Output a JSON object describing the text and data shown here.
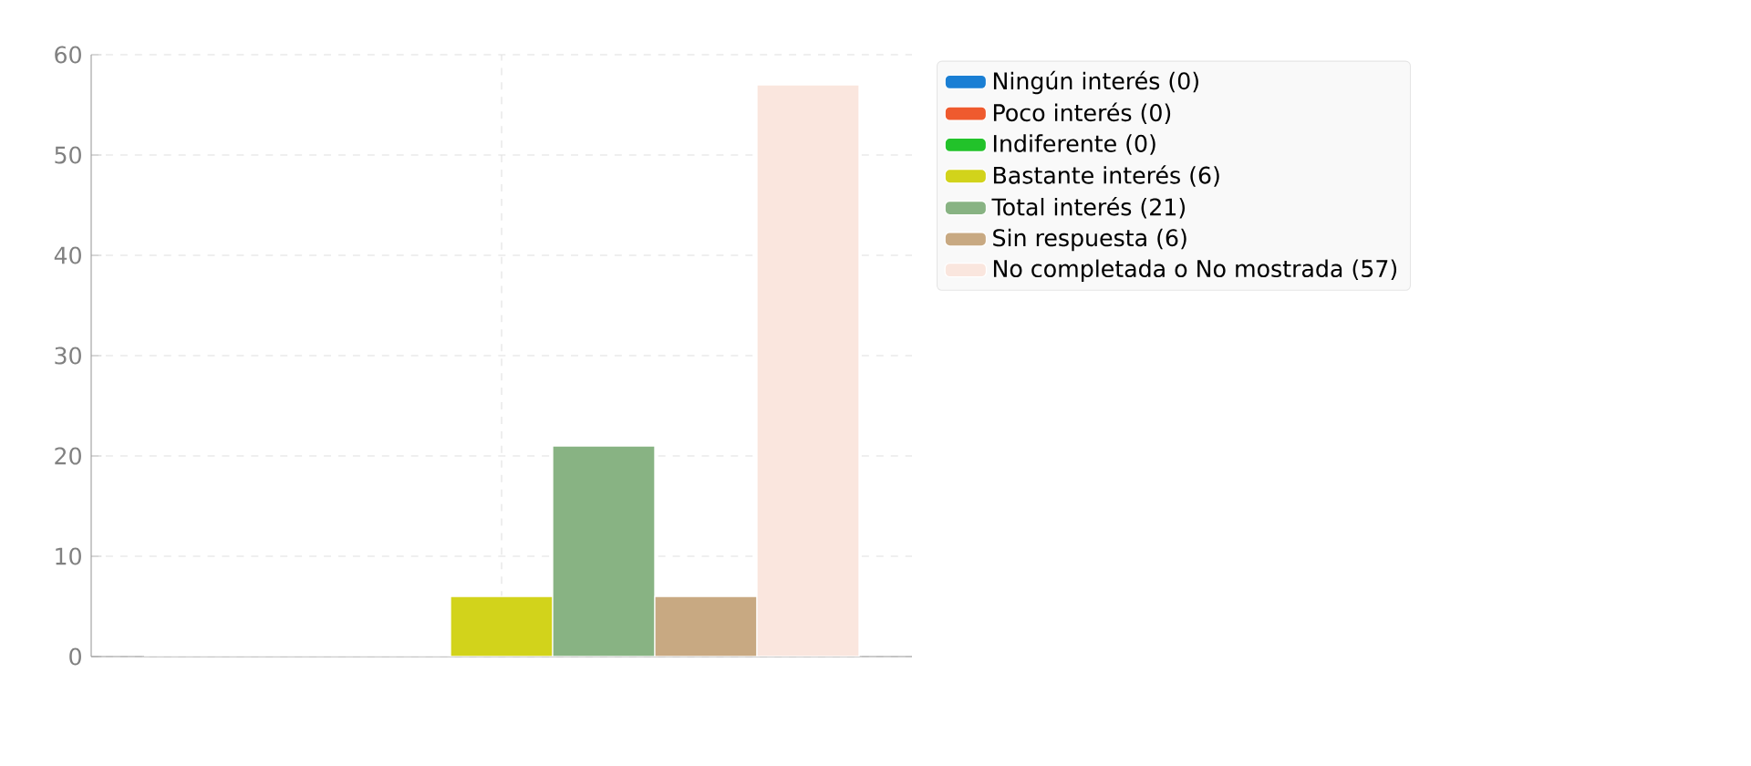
{
  "chart_data": {
    "type": "bar",
    "categories": [
      null
    ],
    "series": [
      {
        "name": "Ningún interés (0)",
        "color": "#1a7fd4",
        "values": [
          0
        ]
      },
      {
        "name": "Poco interés (0)",
        "color": "#ef5a2e",
        "values": [
          0
        ]
      },
      {
        "name": "Indiferente (0)",
        "color": "#22c22a",
        "values": [
          0
        ]
      },
      {
        "name": "Bastante interés (6)",
        "color": "#d2d31b",
        "values": [
          6
        ]
      },
      {
        "name": "Total interés (21)",
        "color": "#88b383",
        "values": [
          21
        ]
      },
      {
        "name": "Sin respuesta (6)",
        "color": "#c8a982",
        "values": [
          6
        ]
      },
      {
        "name": "No completada o No mostrada (57)",
        "color": "#fae6de",
        "values": [
          57
        ]
      }
    ],
    "ylim": [
      0,
      60
    ],
    "yticks": [
      0,
      10,
      20,
      30,
      40,
      50,
      60
    ],
    "grid": true,
    "legend": "right",
    "tick_labels": "y"
  }
}
